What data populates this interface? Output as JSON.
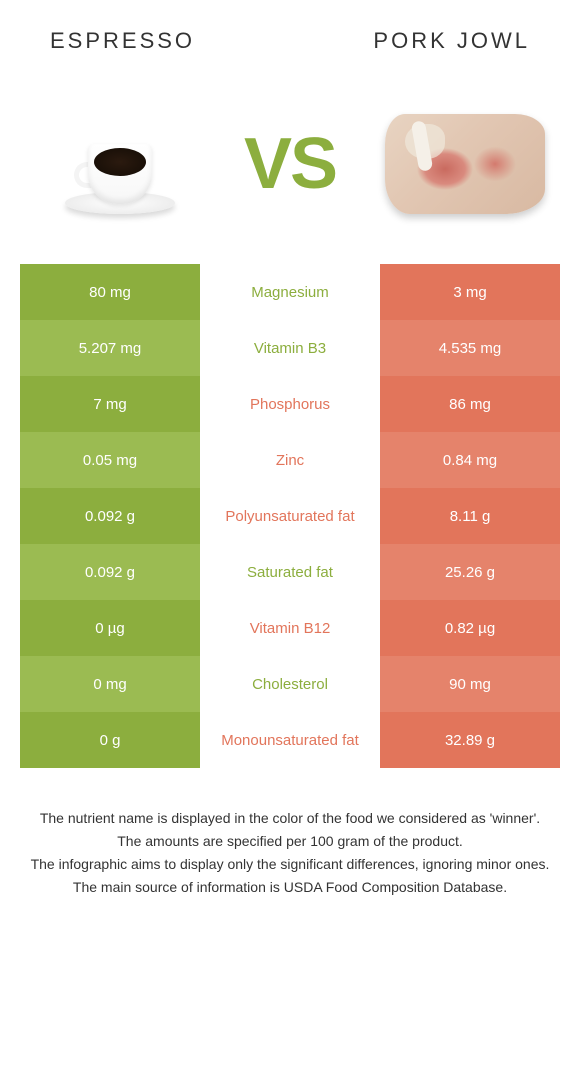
{
  "header": {
    "left_title": "Espresso",
    "right_title": "Pork jowl"
  },
  "vs_label": "VS",
  "colors": {
    "left_base": "#8cae3e",
    "left_alt": "#9bbb52",
    "right_base": "#e2755b",
    "right_alt": "#e5836b",
    "winner_left_text": "#8cae3e",
    "winner_right_text": "#e2755b",
    "cell_text_white": "#ffffff",
    "background": "#ffffff"
  },
  "table": {
    "type": "comparison-table",
    "columns": [
      "left_value",
      "nutrient",
      "right_value"
    ],
    "rows": [
      {
        "left": "80 mg",
        "nutrient": "Magnesium",
        "right": "3 mg",
        "winner": "left"
      },
      {
        "left": "5.207 mg",
        "nutrient": "Vitamin B3",
        "right": "4.535 mg",
        "winner": "left"
      },
      {
        "left": "7 mg",
        "nutrient": "Phosphorus",
        "right": "86 mg",
        "winner": "right"
      },
      {
        "left": "0.05 mg",
        "nutrient": "Zinc",
        "right": "0.84 mg",
        "winner": "right"
      },
      {
        "left": "0.092 g",
        "nutrient": "Polyunsaturated fat",
        "right": "8.11 g",
        "winner": "right"
      },
      {
        "left": "0.092 g",
        "nutrient": "Saturated fat",
        "right": "25.26 g",
        "winner": "left"
      },
      {
        "left": "0 µg",
        "nutrient": "Vitamin B12",
        "right": "0.82 µg",
        "winner": "right"
      },
      {
        "left": "0 mg",
        "nutrient": "Cholesterol",
        "right": "90 mg",
        "winner": "left"
      },
      {
        "left": "0 g",
        "nutrient": "Monounsaturated fat",
        "right": "32.89 g",
        "winner": "right"
      }
    ]
  },
  "footer": {
    "line1": "The nutrient name is displayed in the color of the food we considered as 'winner'.",
    "line2": "The amounts are specified per 100 gram of the product.",
    "line3": "The infographic aims to display only the significant differences, ignoring minor ones.",
    "line4": "The main source of information is USDA Food Composition Database."
  }
}
